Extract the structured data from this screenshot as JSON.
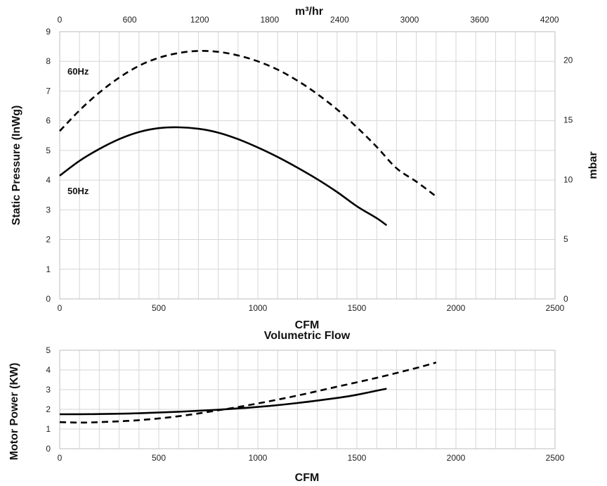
{
  "chart_data": [
    {
      "type": "line",
      "xlabel": "CFM",
      "ylabel": "Static Pressure (InWg)",
      "x2label": "m³/hr",
      "y2label": "mbar",
      "x_ticks": [
        "0",
        "500",
        "1000",
        "1500",
        "2000",
        "2500"
      ],
      "y_ticks": [
        "0",
        "1",
        "2",
        "3",
        "4",
        "5",
        "6",
        "7",
        "8",
        "9"
      ],
      "x2_ticks": [
        "0",
        "600",
        "1200",
        "1800",
        "2400",
        "3000",
        "3600",
        "4200"
      ],
      "y2_ticks": [
        "0",
        "5",
        "10",
        "15",
        "20"
      ],
      "xlim": [
        0,
        2500
      ],
      "ylim": [
        0,
        9
      ],
      "x2lim": [
        0,
        4247
      ],
      "y2lim": [
        0,
        22.4
      ],
      "grid": true,
      "series": [
        {
          "name": "60Hz",
          "style": "dashed",
          "x": [
            0,
            100,
            200,
            300,
            400,
            500,
            600,
            700,
            800,
            900,
            1000,
            1100,
            1200,
            1300,
            1400,
            1500,
            1600,
            1700,
            1800,
            1900
          ],
          "y": [
            5.65,
            6.35,
            6.95,
            7.45,
            7.85,
            8.12,
            8.28,
            8.35,
            8.32,
            8.2,
            8.0,
            7.72,
            7.35,
            6.9,
            6.38,
            5.78,
            5.12,
            4.4,
            3.95,
            3.45
          ]
        },
        {
          "name": "50Hz",
          "style": "solid",
          "x": [
            0,
            100,
            200,
            300,
            400,
            500,
            600,
            700,
            800,
            900,
            1000,
            1100,
            1200,
            1300,
            1400,
            1500,
            1600,
            1650
          ],
          "y": [
            4.15,
            4.65,
            5.05,
            5.38,
            5.62,
            5.75,
            5.78,
            5.73,
            5.6,
            5.38,
            5.1,
            4.78,
            4.42,
            4.03,
            3.6,
            3.12,
            2.72,
            2.48
          ]
        }
      ]
    },
    {
      "type": "line",
      "title": "Volumetric Flow",
      "xlabel": "CFM",
      "ylabel": "Motor Power (KW)",
      "x_ticks": [
        "0",
        "500",
        "1000",
        "1500",
        "2000",
        "2500"
      ],
      "y_ticks": [
        "0",
        "1",
        "2",
        "3",
        "4",
        "5"
      ],
      "xlim": [
        0,
        2500
      ],
      "ylim": [
        0,
        5
      ],
      "grid": true,
      "series": [
        {
          "style": "solid",
          "x": [
            0,
            200,
            400,
            600,
            800,
            1000,
            1200,
            1400,
            1500,
            1650
          ],
          "y": [
            1.75,
            1.76,
            1.8,
            1.88,
            1.98,
            2.12,
            2.32,
            2.58,
            2.74,
            3.05
          ]
        },
        {
          "style": "dashed",
          "x": [
            0,
            100,
            200,
            400,
            600,
            800,
            1000,
            1200,
            1400,
            1600,
            1800,
            1900
          ],
          "y": [
            1.35,
            1.33,
            1.35,
            1.45,
            1.65,
            1.95,
            2.3,
            2.7,
            3.15,
            3.6,
            4.1,
            4.38
          ]
        }
      ]
    }
  ]
}
